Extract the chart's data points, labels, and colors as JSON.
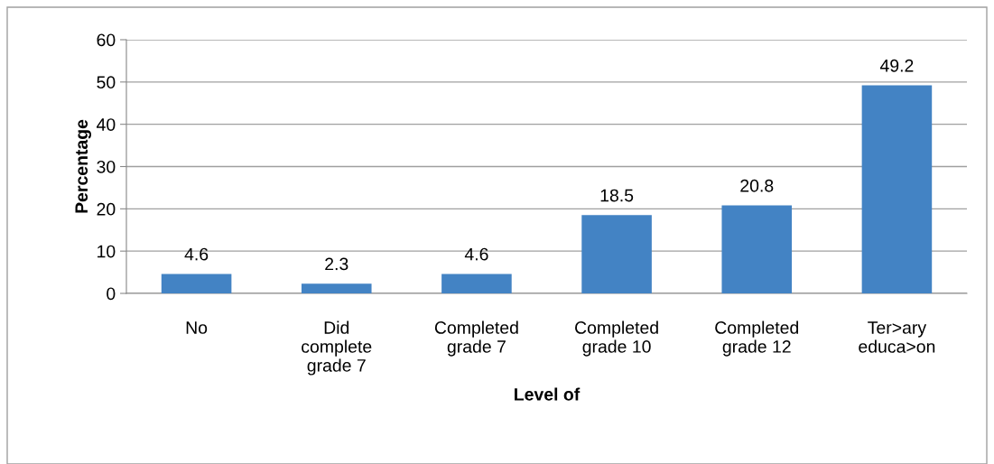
{
  "chart_data": {
    "type": "bar",
    "xlabel": "Level of",
    "ylabel": "Percentage",
    "categories": [
      "No",
      "Did\ncomplete\ngrade 7",
      "Completed\ngrade 7",
      "Completed\ngrade 10",
      "Completed\ngrade 12",
      "Ter>ary\neduca>on"
    ],
    "values": [
      4.6,
      2.3,
      4.6,
      18.5,
      20.8,
      49.2
    ],
    "color": "#4383c4",
    "ylim": [
      0,
      60
    ],
    "yticks": [
      0,
      10,
      20,
      30,
      40,
      50,
      60
    ],
    "grid": "y",
    "data_labels": true
  }
}
